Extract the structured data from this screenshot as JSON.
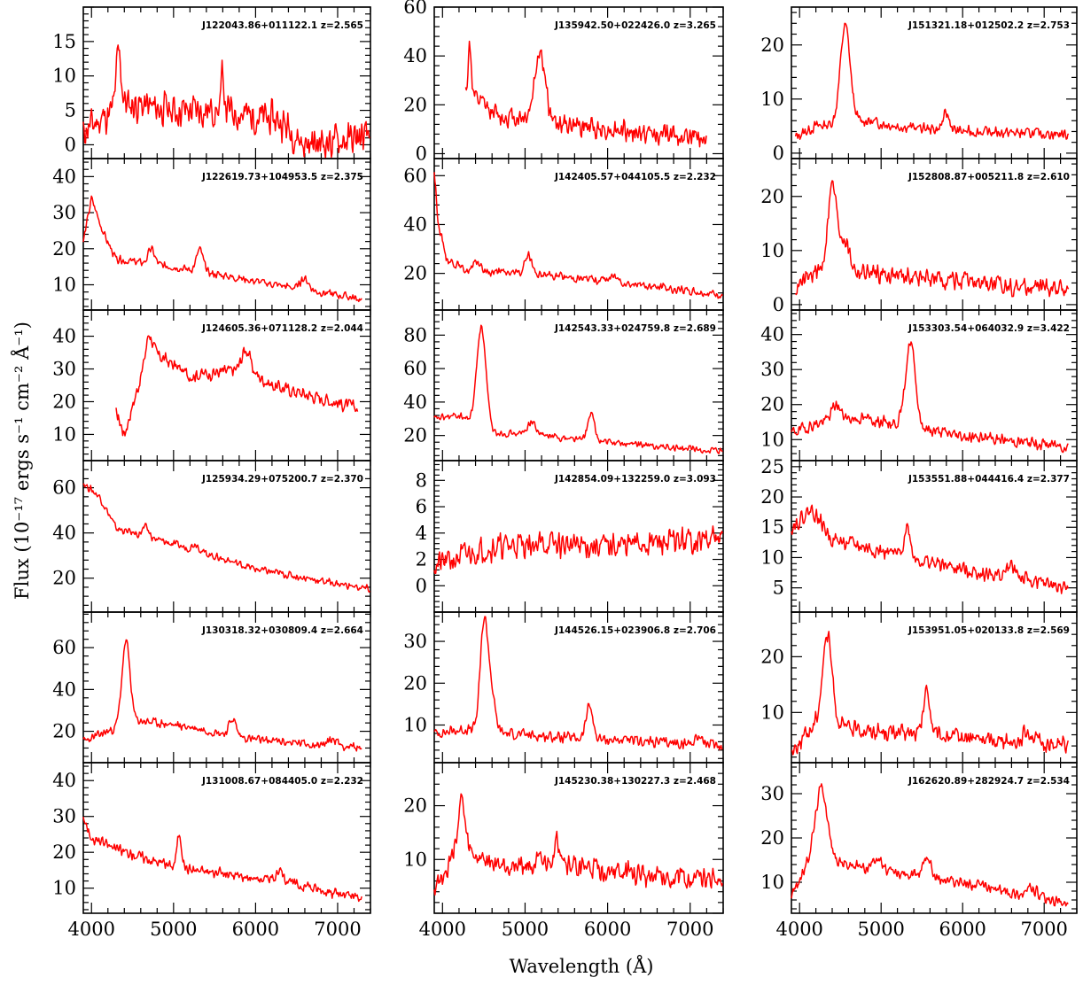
{
  "figure": {
    "xlabel": "Wavelength (Å)",
    "ylabel": "Flux (10⁻¹⁷ ergs s⁻¹ cm⁻² Å⁻¹)",
    "line_color": "#ff0000",
    "xlim": [
      3900,
      7400
    ],
    "xticks": [
      4000,
      5000,
      6000,
      7000
    ]
  },
  "chart_data": [
    {
      "type": "line",
      "label": "J122043.86+011122.1  z=2.565",
      "ylim": [
        -2,
        20
      ],
      "yticks": [
        0,
        5,
        10,
        15
      ],
      "continuum": [
        [
          3900,
          2
        ],
        [
          4400,
          6
        ],
        [
          5000,
          5
        ],
        [
          5600,
          5
        ],
        [
          6300,
          3.5
        ],
        [
          6600,
          0
        ],
        [
          7300,
          1
        ]
      ],
      "lines": [
        [
          4330,
          8,
          30
        ],
        [
          5600,
          6,
          15
        ]
      ],
      "noise": 3,
      "start": 3900,
      "end": 7400,
      "seed": 11
    },
    {
      "type": "line",
      "label": "J135942.50+022426.0  z=3.265",
      "ylim": [
        -2,
        60
      ],
      "yticks": [
        0,
        20,
        40,
        60
      ],
      "continuum": [
        [
          4280,
          25
        ],
        [
          4700,
          15
        ],
        [
          5100,
          15
        ],
        [
          5500,
          12
        ],
        [
          6500,
          8
        ],
        [
          7200,
          7
        ]
      ],
      "lines": [
        [
          4330,
          20,
          20
        ],
        [
          5180,
          28,
          60
        ]
      ],
      "noise": 5,
      "start": 4280,
      "end": 7200,
      "seed": 12
    },
    {
      "type": "line",
      "label": "J151321.18+012502.2  z=2.753",
      "ylim": [
        -1,
        27
      ],
      "yticks": [
        0,
        10,
        20
      ],
      "continuum": [
        [
          3950,
          3
        ],
        [
          4200,
          5
        ],
        [
          4800,
          6
        ],
        [
          5200,
          5
        ],
        [
          6000,
          4
        ],
        [
          7300,
          3.5
        ]
      ],
      "lines": [
        [
          4560,
          18,
          60
        ],
        [
          5800,
          3,
          40
        ]
      ],
      "noise": 1.2,
      "start": 3950,
      "end": 7300,
      "seed": 13
    },
    {
      "type": "line",
      "label": "J122619.73+104953.5  z=2.375",
      "ylim": [
        3,
        45
      ],
      "yticks": [
        10,
        20,
        30,
        40
      ],
      "continuum": [
        [
          3900,
          22
        ],
        [
          4000,
          34
        ],
        [
          4150,
          24
        ],
        [
          4300,
          17
        ],
        [
          5000,
          15
        ],
        [
          6000,
          11
        ],
        [
          7300,
          6
        ]
      ],
      "lines": [
        [
          4730,
          4,
          40
        ],
        [
          5320,
          6,
          40
        ],
        [
          6600,
          3,
          50
        ]
      ],
      "noise": 1.3,
      "start": 3900,
      "end": 7300,
      "seed": 14
    },
    {
      "type": "line",
      "label": "J142405.57+044105.5  z=2.232",
      "ylim": [
        5,
        67
      ],
      "yticks": [
        20,
        40,
        60
      ],
      "continuum": [
        [
          3900,
          62
        ],
        [
          3950,
          40
        ],
        [
          4050,
          26
        ],
        [
          4300,
          21
        ],
        [
          5000,
          20
        ],
        [
          6000,
          17
        ],
        [
          7400,
          11
        ]
      ],
      "lines": [
        [
          4420,
          4,
          40
        ],
        [
          5040,
          8,
          40
        ],
        [
          6080,
          2,
          60
        ]
      ],
      "noise": 2,
      "start": 3900,
      "end": 7400,
      "seed": 15
    },
    {
      "type": "line",
      "label": "J152808.87+005211.8  z=2.610",
      "ylim": [
        -1,
        27
      ],
      "yticks": [
        0,
        10,
        20
      ],
      "continuum": [
        [
          3950,
          3
        ],
        [
          4200,
          6
        ],
        [
          4800,
          6
        ],
        [
          5500,
          5
        ],
        [
          6500,
          3.5
        ],
        [
          7300,
          3
        ]
      ],
      "lines": [
        [
          4400,
          16,
          55
        ],
        [
          4550,
          6,
          60
        ]
      ],
      "noise": 2,
      "start": 3950,
      "end": 7300,
      "seed": 16
    },
    {
      "type": "line",
      "label": "J124605.36+071128.2  z=2.044",
      "ylim": [
        2,
        48
      ],
      "yticks": [
        10,
        20,
        30,
        40
      ],
      "continuum": [
        [
          4300,
          17
        ],
        [
          4400,
          10
        ],
        [
          4700,
          36
        ],
        [
          5200,
          28
        ],
        [
          5900,
          30
        ],
        [
          6200,
          25
        ],
        [
          7250,
          18
        ]
      ],
      "lines": [
        [
          4700,
          5,
          40
        ],
        [
          5880,
          6,
          50
        ]
      ],
      "noise": 2.5,
      "start": 4300,
      "end": 7250,
      "seed": 17
    },
    {
      "type": "line",
      "label": "J142543.33+024759.8  z=2.689",
      "ylim": [
        5,
        95
      ],
      "yticks": [
        20,
        40,
        60,
        80
      ],
      "continuum": [
        [
          3900,
          30
        ],
        [
          4200,
          32
        ],
        [
          4600,
          22
        ],
        [
          5200,
          20
        ],
        [
          6000,
          16
        ],
        [
          7400,
          10
        ]
      ],
      "lines": [
        [
          4470,
          60,
          55
        ],
        [
          5080,
          8,
          50
        ],
        [
          5800,
          16,
          40
        ]
      ],
      "noise": 2.5,
      "start": 3900,
      "end": 7400,
      "seed": 18
    },
    {
      "type": "line",
      "label": "J153303.54+064032.9  z=3.422",
      "ylim": [
        4,
        47
      ],
      "yticks": [
        10,
        20,
        30,
        40
      ],
      "continuum": [
        [
          3900,
          12
        ],
        [
          4400,
          16
        ],
        [
          4800,
          16
        ],
        [
          5300,
          14
        ],
        [
          6000,
          11
        ],
        [
          7300,
          8
        ]
      ],
      "lines": [
        [
          4450,
          4,
          50
        ],
        [
          5360,
          24,
          60
        ]
      ],
      "noise": 2,
      "start": 3900,
      "end": 7300,
      "seed": 19
    },
    {
      "type": "line",
      "label": "J125934.29+075200.7  z=2.370",
      "ylim": [
        5,
        72
      ],
      "yticks": [
        20,
        40,
        60
      ],
      "continuum": [
        [
          3900,
          62
        ],
        [
          4100,
          56
        ],
        [
          4300,
          42
        ],
        [
          5000,
          35
        ],
        [
          5300,
          32
        ],
        [
          6000,
          24
        ],
        [
          7400,
          15
        ]
      ],
      "lines": [
        [
          4660,
          4,
          40
        ],
        [
          5270,
          3,
          40
        ]
      ],
      "noise": 2,
      "start": 3900,
      "end": 7400,
      "seed": 20
    },
    {
      "type": "line",
      "label": "J142854.09+132259.0  z=3.093",
      "ylim": [
        -2,
        9.5
      ],
      "yticks": [
        0,
        2,
        4,
        6,
        8
      ],
      "continuum": [
        [
          3900,
          1.5
        ],
        [
          4500,
          2.8
        ],
        [
          5000,
          3.2
        ],
        [
          6000,
          3
        ],
        [
          7400,
          3.6
        ]
      ],
      "lines": [],
      "noise": 1.2,
      "start": 3900,
      "end": 7400,
      "seed": 21
    },
    {
      "type": "line",
      "label": "J153551.88+044416.4  z=2.377",
      "ylim": [
        1,
        26
      ],
      "yticks": [
        5,
        10,
        15,
        20,
        25
      ],
      "continuum": [
        [
          3900,
          15
        ],
        [
          4150,
          18
        ],
        [
          4400,
          13
        ],
        [
          5000,
          11
        ],
        [
          6000,
          8
        ],
        [
          7300,
          5
        ]
      ],
      "lines": [
        [
          5320,
          5,
          40
        ],
        [
          6600,
          2,
          60
        ]
      ],
      "noise": 1.5,
      "start": 3900,
      "end": 7300,
      "seed": 22
    },
    {
      "type": "line",
      "label": "J130318.32+030809.4  z=2.664",
      "ylim": [
        5,
        77
      ],
      "yticks": [
        20,
        40,
        60
      ],
      "continuum": [
        [
          3900,
          15
        ],
        [
          4200,
          20
        ],
        [
          4600,
          25
        ],
        [
          5200,
          22
        ],
        [
          6000,
          16
        ],
        [
          7300,
          12
        ]
      ],
      "lines": [
        [
          4420,
          40,
          50
        ],
        [
          5720,
          8,
          40
        ],
        [
          6950,
          3,
          60
        ]
      ],
      "noise": 2.5,
      "start": 3900,
      "end": 7300,
      "seed": 23
    },
    {
      "type": "line",
      "label": "J144526.15+023906.8  z=2.706",
      "ylim": [
        1,
        37
      ],
      "yticks": [
        10,
        20,
        30
      ],
      "continuum": [
        [
          3900,
          8
        ],
        [
          4300,
          9
        ],
        [
          4800,
          8
        ],
        [
          5500,
          7
        ],
        [
          6500,
          6
        ],
        [
          7400,
          5
        ]
      ],
      "lines": [
        [
          4500,
          24,
          45
        ],
        [
          4580,
          10,
          50
        ],
        [
          5780,
          8,
          40
        ],
        [
          7100,
          2,
          50
        ]
      ],
      "noise": 1.5,
      "start": 3900,
      "end": 7400,
      "seed": 24
    },
    {
      "type": "line",
      "label": "J153951.05+020133.8  z=2.569",
      "ylim": [
        1,
        28
      ],
      "yticks": [
        10,
        20
      ],
      "continuum": [
        [
          3900,
          3
        ],
        [
          4200,
          8
        ],
        [
          4700,
          7
        ],
        [
          5500,
          6
        ],
        [
          6500,
          5
        ],
        [
          7300,
          4
        ]
      ],
      "lines": [
        [
          4340,
          16,
          60
        ],
        [
          5560,
          8,
          40
        ],
        [
          6800,
          2,
          60
        ]
      ],
      "noise": 1.8,
      "start": 3900,
      "end": 7300,
      "seed": 25
    },
    {
      "type": "line",
      "label": "J131008.67+084405.0  z=2.232",
      "ylim": [
        3,
        45
      ],
      "yticks": [
        10,
        20,
        30,
        40
      ],
      "continuum": [
        [
          3900,
          30
        ],
        [
          4000,
          24
        ],
        [
          4300,
          21
        ],
        [
          5000,
          16
        ],
        [
          5600,
          14
        ],
        [
          6300,
          12
        ],
        [
          7300,
          7
        ]
      ],
      "lines": [
        [
          5070,
          9,
          30
        ],
        [
          6300,
          2,
          60
        ]
      ],
      "noise": 1.8,
      "start": 3900,
      "end": 7300,
      "seed": 26
    },
    {
      "type": "line",
      "label": "J145230.38+130227.3  z=2.468",
      "ylim": [
        0,
        28
      ],
      "yticks": [
        10,
        20
      ],
      "continuum": [
        [
          3900,
          5
        ],
        [
          4200,
          12
        ],
        [
          4600,
          9
        ],
        [
          5400,
          9
        ],
        [
          6500,
          7
        ],
        [
          7400,
          6
        ]
      ],
      "lines": [
        [
          4230,
          9,
          40
        ],
        [
          5400,
          4,
          50
        ]
      ],
      "noise": 2.5,
      "start": 3900,
      "end": 7400,
      "seed": 27
    },
    {
      "type": "line",
      "label": "J162620.89+282924.7  z=2.534",
      "ylim": [
        3,
        37
      ],
      "yticks": [
        10,
        20,
        30
      ],
      "continuum": [
        [
          3900,
          7
        ],
        [
          4150,
          16
        ],
        [
          4600,
          14
        ],
        [
          5200,
          12
        ],
        [
          6000,
          10
        ],
        [
          7300,
          5
        ]
      ],
      "lines": [
        [
          4270,
          16,
          70
        ],
        [
          4950,
          3,
          50
        ],
        [
          5560,
          5,
          50
        ],
        [
          6850,
          2,
          60
        ]
      ],
      "noise": 1.5,
      "start": 3900,
      "end": 7300,
      "seed": 28
    }
  ]
}
